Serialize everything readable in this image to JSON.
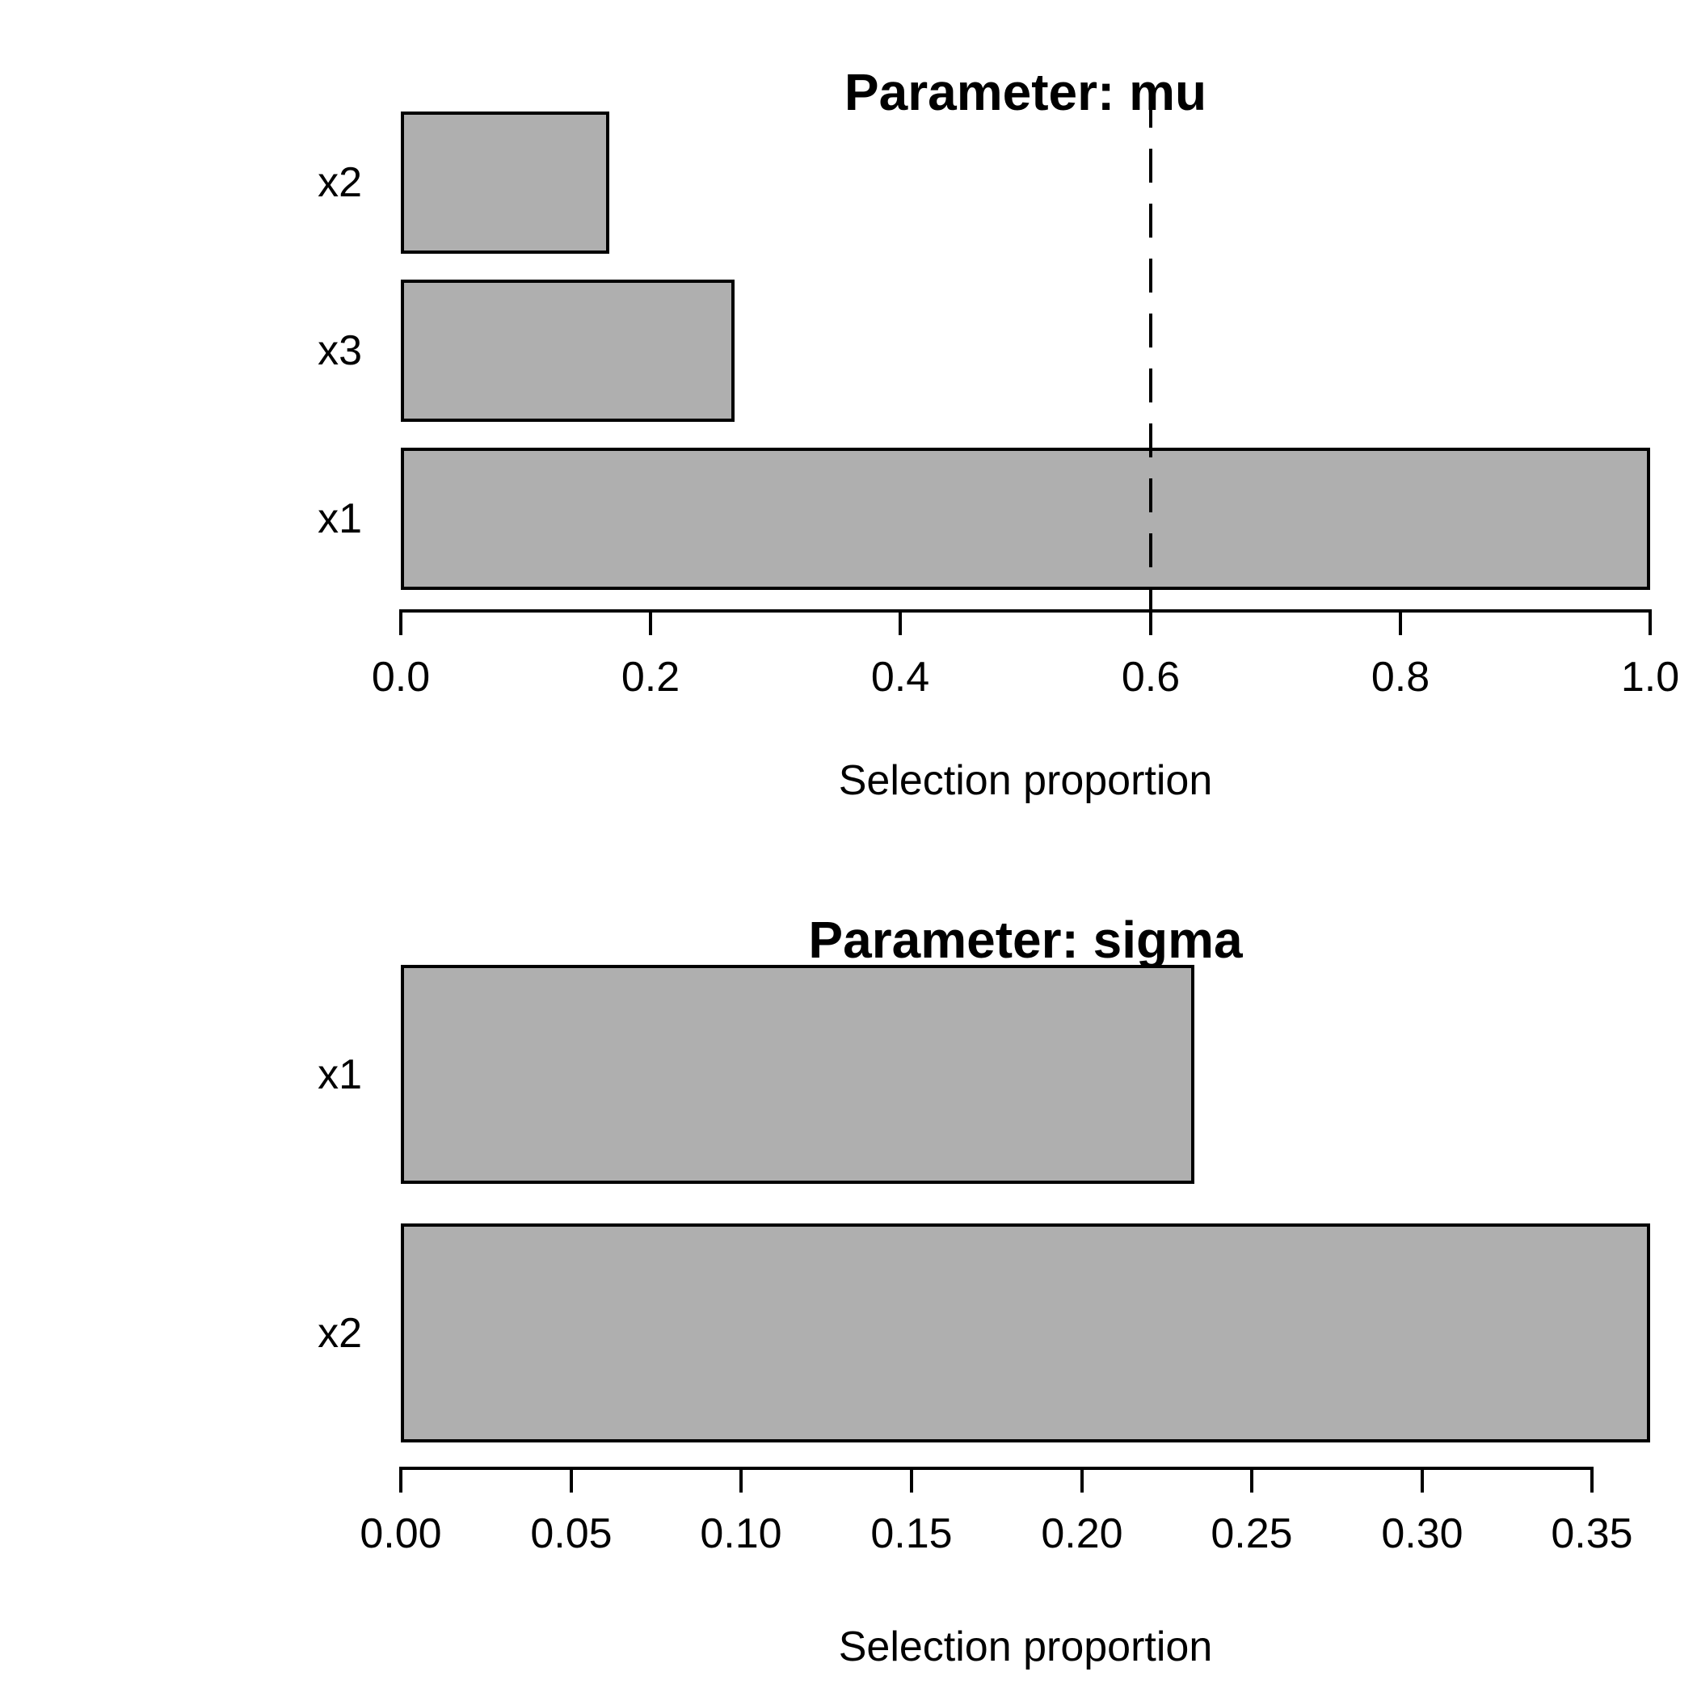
{
  "figure": {
    "background": "#ffffff",
    "text_color": "#000000"
  },
  "chart_data": [
    {
      "type": "bar",
      "orientation": "horizontal",
      "title": "Parameter: mu",
      "xlabel": "Selection proportion",
      "categories": [
        "x2",
        "x3",
        "x1"
      ],
      "values": [
        0.167,
        0.267,
        1.0
      ],
      "xlim": [
        0,
        1.0
      ],
      "xticks": [
        "0.0",
        "0.2",
        "0.4",
        "0.6",
        "0.8",
        "1.0"
      ],
      "xtick_values": [
        0,
        0.2,
        0.4,
        0.6,
        0.8,
        1.0
      ],
      "reference_line": {
        "value": 0.6,
        "style": "dashed",
        "color": "#000000"
      },
      "bar_fill": "#AFAFAF",
      "bar_border": "#000000",
      "grid": "off",
      "legend": "none"
    },
    {
      "type": "bar",
      "orientation": "horizontal",
      "title": "Parameter: sigma",
      "xlabel": "Selection proportion",
      "categories": [
        "x1",
        "x2"
      ],
      "values": [
        0.233,
        0.367
      ],
      "xlim": [
        0,
        0.367
      ],
      "xticks": [
        "0.00",
        "0.05",
        "0.10",
        "0.15",
        "0.20",
        "0.25",
        "0.30",
        "0.35"
      ],
      "xtick_values": [
        0,
        0.05,
        0.1,
        0.15,
        0.2,
        0.25,
        0.3,
        0.35
      ],
      "reference_line": null,
      "bar_fill": "#AFAFAF",
      "bar_border": "#000000",
      "grid": "off",
      "legend": "none"
    }
  ]
}
